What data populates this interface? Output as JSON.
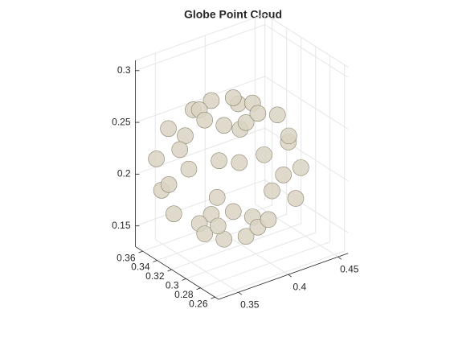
{
  "chart_data": {
    "type": "scatter3",
    "title": "Globe Point Cloud",
    "color": "#d9d3c2",
    "grid": true,
    "xlim": [
      0.33,
      0.46
    ],
    "ylim": [
      0.255,
      0.37
    ],
    "zlim": [
      0.13,
      0.31
    ],
    "xticks": [
      0.35,
      0.4,
      0.45
    ],
    "yticks": [
      0.26,
      0.28,
      0.3,
      0.32,
      0.34,
      0.36
    ],
    "zticks": [
      0.15,
      0.2,
      0.25,
      0.3
    ],
    "x": [
      0.404,
      0.397,
      0.38,
      0.363,
      0.356,
      0.363,
      0.38,
      0.397,
      0.435,
      0.419,
      0.38,
      0.341,
      0.325,
      0.341,
      0.38,
      0.419,
      0.44,
      0.422,
      0.38,
      0.338,
      0.32,
      0.338,
      0.38,
      0.422,
      0.429,
      0.415,
      0.38,
      0.345,
      0.331,
      0.345,
      0.38,
      0.415,
      0.404,
      0.397,
      0.38,
      0.363,
      0.356,
      0.363,
      0.38,
      0.397
    ],
    "y": [
      0.31,
      0.327,
      0.334,
      0.327,
      0.31,
      0.293,
      0.286,
      0.293,
      0.31,
      0.349,
      0.365,
      0.349,
      0.31,
      0.271,
      0.255,
      0.271,
      0.31,
      0.352,
      0.37,
      0.352,
      0.31,
      0.268,
      0.25,
      0.268,
      0.31,
      0.345,
      0.359,
      0.345,
      0.31,
      0.275,
      0.261,
      0.275,
      0.31,
      0.327,
      0.334,
      0.327,
      0.31,
      0.293,
      0.286,
      0.293
    ],
    "z": [
      0.16,
      0.16,
      0.16,
      0.16,
      0.16,
      0.16,
      0.16,
      0.16,
      0.19,
      0.19,
      0.19,
      0.19,
      0.19,
      0.19,
      0.19,
      0.19,
      0.22,
      0.22,
      0.22,
      0.22,
      0.22,
      0.22,
      0.22,
      0.22,
      0.25,
      0.25,
      0.25,
      0.25,
      0.25,
      0.25,
      0.25,
      0.25,
      0.27,
      0.27,
      0.27,
      0.27,
      0.27,
      0.27,
      0.27,
      0.27
    ]
  }
}
